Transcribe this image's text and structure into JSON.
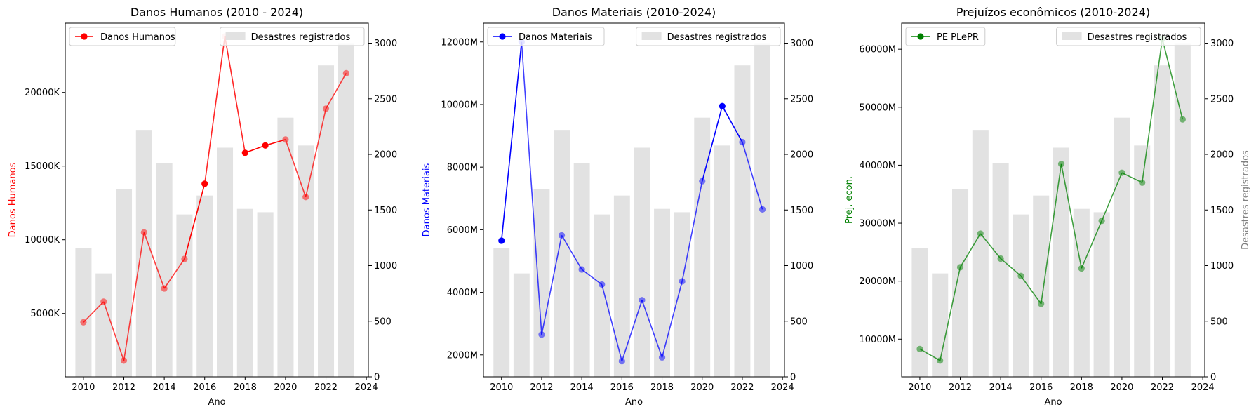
{
  "chart_data": [
    {
      "type": "bar+line",
      "title": "Danos Humanos (2010 - 2024)",
      "xlabel": "Ano",
      "ylabel": "Danos Humanos",
      "ylabel_color": "#ff0000",
      "ylabel_right": "",
      "line_color": "#ff0000",
      "line_series_name": "Danos Humanos",
      "bar_series_name": "Desastres registrados",
      "x_ticks": [
        "2010",
        "2012",
        "2014",
        "2016",
        "2018",
        "2020",
        "2022",
        "2024"
      ],
      "y_left_ticks": [
        "5000K",
        "10000K",
        "15000K",
        "20000K"
      ],
      "y_right_ticks": [
        "0",
        "500",
        "1000",
        "1500",
        "2000",
        "2500",
        "3000"
      ],
      "legend_line_position": "upper-left",
      "legend_bar_position": "upper-right",
      "years": [
        2010,
        2011,
        2012,
        2013,
        2014,
        2015,
        2016,
        2017,
        2018,
        2019,
        2020,
        2021,
        2022,
        2023
      ],
      "bars": [
        1160,
        930,
        1690,
        2220,
        1920,
        1460,
        1630,
        2060,
        1510,
        1480,
        2330,
        2080,
        2800,
        3000
      ],
      "line": [
        4400,
        5800,
        1800,
        10500,
        6700,
        8700,
        13800,
        23800,
        15900,
        16400,
        16800,
        12900,
        18900,
        21300
      ],
      "point_opacity": [
        0.5,
        0.5,
        0.5,
        0.5,
        0.5,
        0.5,
        1,
        0.2,
        1,
        1,
        0.5,
        0.5,
        0.5,
        0.5
      ],
      "y_left_range": [
        700,
        24700
      ],
      "y_right_range": [
        0,
        3180
      ],
      "y_left_tick_values": [
        5000,
        10000,
        15000,
        20000
      ],
      "y_right_tick_values": [
        0,
        500,
        1000,
        1500,
        2000,
        2500,
        3000
      ]
    },
    {
      "type": "bar+line",
      "title": "Danos Materiais (2010-2024)",
      "xlabel": "Ano",
      "ylabel": "Danos Materiais",
      "ylabel_color": "#0000ff",
      "ylabel_right": "",
      "line_color": "#0000ff",
      "line_series_name": "Danos Materiais",
      "bar_series_name": "Desastres registrados",
      "x_ticks": [
        "2010",
        "2012",
        "2014",
        "2016",
        "2018",
        "2020",
        "2022",
        "2024"
      ],
      "y_left_ticks": [
        "2000M",
        "4000M",
        "6000M",
        "8000M",
        "10000M",
        "12000M"
      ],
      "y_right_ticks": [
        "0",
        "500",
        "1000",
        "1500",
        "2000",
        "2500",
        "3000"
      ],
      "legend_line_position": "upper-left",
      "legend_bar_position": "upper-right",
      "years": [
        2010,
        2011,
        2012,
        2013,
        2014,
        2015,
        2016,
        2017,
        2018,
        2019,
        2020,
        2021,
        2022,
        2023
      ],
      "bars": [
        1160,
        930,
        1690,
        2220,
        1920,
        1460,
        1630,
        2060,
        1510,
        1480,
        2330,
        2080,
        2800,
        3000
      ],
      "line": [
        5650,
        12000,
        2650,
        5820,
        4730,
        4250,
        1800,
        3750,
        1920,
        4350,
        7550,
        9950,
        8800,
        6650
      ],
      "point_opacity": [
        1,
        0.5,
        0.5,
        0.5,
        0.5,
        0.5,
        0.5,
        0.5,
        0.5,
        0.5,
        0.5,
        1,
        0.5,
        0.5
      ],
      "y_left_range": [
        1300,
        12600
      ],
      "y_right_range": [
        0,
        3180
      ],
      "y_left_tick_values": [
        2000,
        4000,
        6000,
        8000,
        10000,
        12000
      ],
      "y_right_tick_values": [
        0,
        500,
        1000,
        1500,
        2000,
        2500,
        3000
      ]
    },
    {
      "type": "bar+line",
      "title": "Prejuízos econômicos (2010-2024)",
      "xlabel": "Ano",
      "ylabel": "Prej. econ.",
      "ylabel_color": "#008000",
      "ylabel_right": "Desastres registrados",
      "line_color": "#008000",
      "line_series_name": "PE PLePR",
      "bar_series_name": "Desastres registrados",
      "x_ticks": [
        "2010",
        "2012",
        "2014",
        "2016",
        "2018",
        "2020",
        "2022",
        "2024"
      ],
      "y_left_ticks": [
        "10000M",
        "20000M",
        "30000M",
        "40000M",
        "50000M",
        "60000M"
      ],
      "y_right_ticks": [
        "0",
        "500",
        "1000",
        "1500",
        "2000",
        "2500",
        "3000"
      ],
      "legend_line_position": "upper-left",
      "legend_bar_position": "upper-right",
      "years": [
        2010,
        2011,
        2012,
        2013,
        2014,
        2015,
        2016,
        2017,
        2018,
        2019,
        2020,
        2021,
        2022,
        2023
      ],
      "bars": [
        1160,
        930,
        1690,
        2220,
        1920,
        1460,
        1630,
        2060,
        1510,
        1480,
        2330,
        2080,
        2800,
        3000
      ],
      "line": [
        8300,
        6300,
        22400,
        28200,
        23900,
        20900,
        16100,
        40200,
        22200,
        30400,
        38700,
        37000,
        61800,
        47900
      ],
      "point_opacity": [
        0.5,
        0.5,
        0.5,
        0.5,
        0.5,
        0.5,
        0.5,
        0.5,
        0.5,
        0.5,
        0.5,
        0.5,
        0.5,
        0.5
      ],
      "y_left_range": [
        3500,
        64500
      ],
      "y_right_range": [
        0,
        3180
      ],
      "y_left_tick_values": [
        10000,
        20000,
        30000,
        40000,
        50000,
        60000
      ],
      "y_right_tick_values": [
        0,
        500,
        1000,
        1500,
        2000,
        2500,
        3000
      ]
    }
  ],
  "colors": {
    "bar_fill": "#e2e2e2",
    "right_label": "#808080"
  }
}
